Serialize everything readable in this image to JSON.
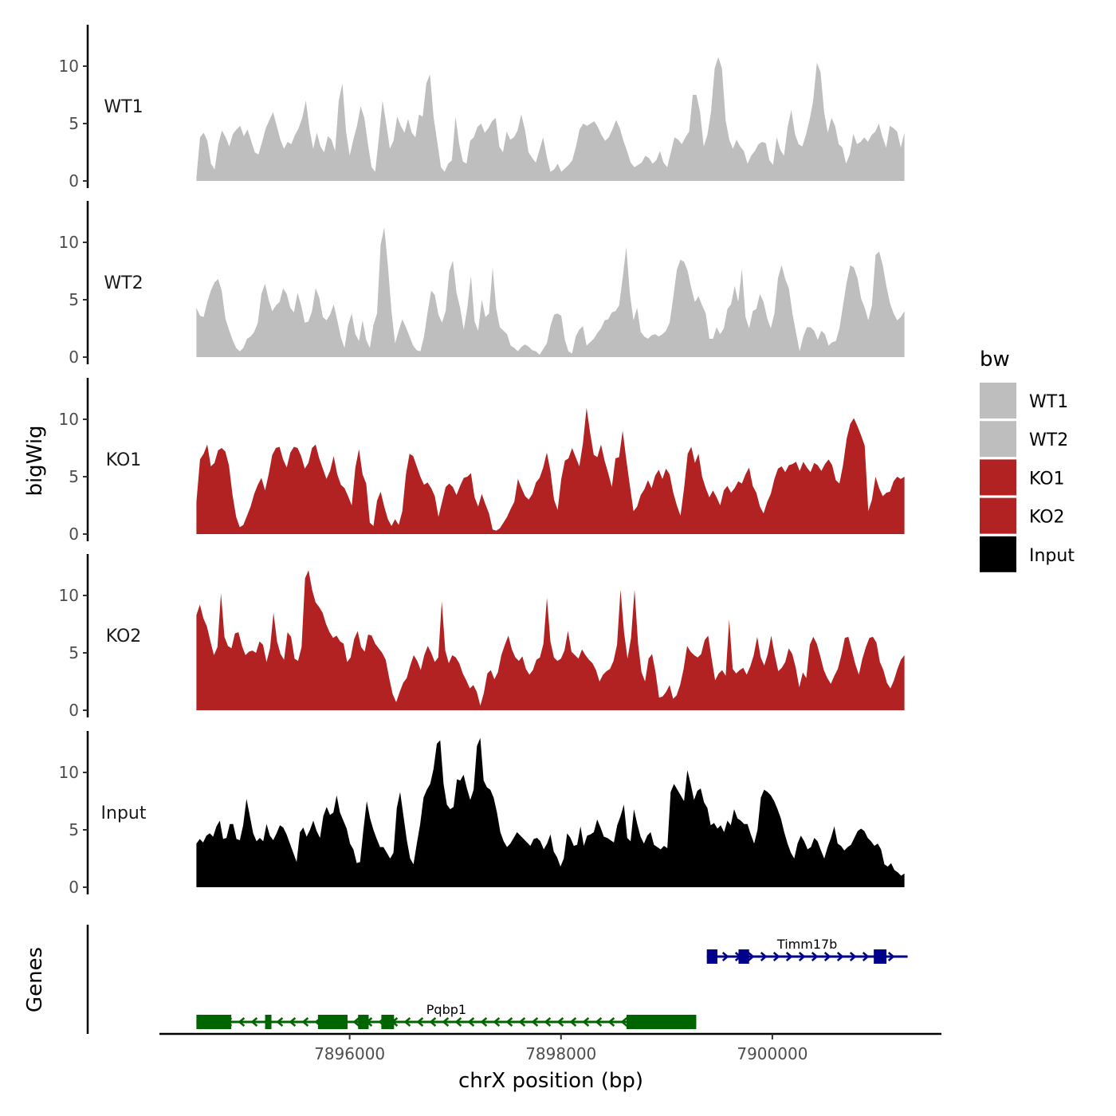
{
  "chart_data": {
    "type": "area",
    "xlabel": "chrX position (bp)",
    "ylabel": "bigWig",
    "genes_label": "Genes",
    "xlim": [
      7894200,
      7901600
    ],
    "region": [
      7894550,
      7901250
    ],
    "x_ticks": [
      {
        "value": 7896000,
        "label": "7896000"
      },
      {
        "value": 7898000,
        "label": "7898000"
      },
      {
        "value": 7900000,
        "label": "7900000"
      }
    ],
    "ylim": [
      0,
      13
    ],
    "y_ticks": [
      {
        "value": 0,
        "label": "0"
      },
      {
        "value": 5,
        "label": "5"
      },
      {
        "value": 10,
        "label": "10"
      }
    ],
    "series": [
      {
        "name": "WT1",
        "color": "#bebebe",
        "values": [
          0.3,
          3.8,
          4.2,
          3.5,
          1.5,
          1.0,
          3.2,
          4.4,
          3.8,
          3.0,
          4.1,
          4.5,
          4.8,
          3.9,
          4.5,
          3.5,
          2.5,
          2.3,
          3.4,
          4.6,
          5.3,
          6.0,
          4.8,
          3.6,
          2.8,
          3.4,
          3.2,
          4.0,
          4.6,
          5.5,
          7.0,
          4.5,
          2.8,
          4.2,
          3.0,
          2.5,
          3.9,
          3.6,
          2.6,
          7.0,
          8.5,
          4.3,
          2.2,
          3.6,
          4.8,
          6.5,
          5.5,
          3.2,
          1.2,
          0.8,
          3.8,
          7.0,
          5.0,
          2.8,
          3.5,
          5.6,
          4.8,
          4.2,
          5.4,
          4.2,
          3.8,
          5.8,
          5.6,
          8.5,
          9.3,
          5.5,
          3.4,
          1.2,
          0.8,
          1.5,
          1.8,
          5.6,
          3.2,
          1.7,
          1.5,
          3.5,
          3.8,
          4.7,
          5.0,
          4.2,
          4.6,
          5.2,
          5.5,
          3.0,
          2.5,
          4.3,
          3.6,
          3.8,
          4.4,
          5.8,
          4.5,
          2.5,
          2.0,
          1.6,
          2.7,
          3.8,
          2.1,
          0.8,
          1.0,
          1.5,
          0.8,
          1.1,
          1.4,
          1.8,
          3.0,
          4.5,
          5.0,
          4.8,
          5.0,
          5.2,
          4.7,
          4.0,
          3.5,
          3.8,
          4.5,
          5.3,
          4.6,
          3.5,
          2.6,
          1.6,
          1.2,
          1.4,
          1.6,
          2.2,
          2.0,
          1.5,
          1.8,
          2.6,
          1.6,
          1.2,
          2.5,
          3.8,
          3.6,
          3.2,
          3.8,
          4.3,
          7.5,
          7.5,
          6.0,
          3.0,
          4.0,
          6.0,
          9.8,
          10.8,
          9.8,
          5.3,
          3.6,
          2.8,
          3.6,
          3.0,
          2.6,
          1.5,
          2.2,
          2.6,
          3.2,
          3.4,
          3.3,
          1.8,
          1.4,
          3.8,
          2.7,
          2.2,
          4.7,
          6.2,
          4.1,
          3.2,
          3.0,
          4.0,
          5.3,
          7.0,
          10.3,
          9.5,
          6.0,
          4.2,
          5.5,
          4.8,
          3.2,
          2.9,
          1.5,
          2.3,
          4.1,
          3.2,
          3.4,
          3.8,
          3.4,
          4.0,
          4.3,
          5.0,
          3.8,
          2.9,
          4.8,
          4.6,
          4.3,
          2.9,
          4.2
        ]
      },
      {
        "name": "WT2",
        "color": "#bebebe",
        "values": [
          4.3,
          3.6,
          3.5,
          4.8,
          5.8,
          6.5,
          6.8,
          5.8,
          3.4,
          2.4,
          1.5,
          0.8,
          0.5,
          0.8,
          1.6,
          1.8,
          2.2,
          3.0,
          5.5,
          6.4,
          5.0,
          4.0,
          4.5,
          4.8,
          6.0,
          5.5,
          4.3,
          3.9,
          5.6,
          4.5,
          3.0,
          3.1,
          4.0,
          6.0,
          5.2,
          3.5,
          3.2,
          3.7,
          4.6,
          3.2,
          1.7,
          0.8,
          2.8,
          3.8,
          2.0,
          1.4,
          3.2,
          1.5,
          0.8,
          2.8,
          3.8,
          9.8,
          11.3,
          8.0,
          4.0,
          1.2,
          2.3,
          3.3,
          2.6,
          1.8,
          1.0,
          0.6,
          0.5,
          1.8,
          3.9,
          5.8,
          5.4,
          3.7,
          3.0,
          4.0,
          7.5,
          8.4,
          5.6,
          4.3,
          2.4,
          4.3,
          7.1,
          3.1,
          2.3,
          5.0,
          3.5,
          3.8,
          7.8,
          4.2,
          2.6,
          2.3,
          2.0,
          1.0,
          0.8,
          0.5,
          0.9,
          1.1,
          0.9,
          0.6,
          0.5,
          0.2,
          0.7,
          1.2,
          2.7,
          3.7,
          3.8,
          3.6,
          1.5,
          0.5,
          0.3,
          1.8,
          2.4,
          2.7,
          1.0,
          1.3,
          1.6,
          2.1,
          2.5,
          3.2,
          3.3,
          3.9,
          4.0,
          4.5,
          6.9,
          9.6,
          5.5,
          3.2,
          4.3,
          2.2,
          1.8,
          1.6,
          1.9,
          2.0,
          1.8,
          2.0,
          2.3,
          3.0,
          5.2,
          7.6,
          8.5,
          8.3,
          7.5,
          6.0,
          4.8,
          5.3,
          4.5,
          3.8,
          1.6,
          1.6,
          2.6,
          2.0,
          2.5,
          4.2,
          4.6,
          6.2,
          4.8,
          7.7,
          3.5,
          2.5,
          4.0,
          4.2,
          5.5,
          4.8,
          3.4,
          2.5,
          3.8,
          6.9,
          8.0,
          6.8,
          6.0,
          3.8,
          2.1,
          0.5,
          1.8,
          2.6,
          2.6,
          2.3,
          1.5,
          2.3,
          2.0,
          1.0,
          1.3,
          1.4,
          2.5,
          4.5,
          6.5,
          8.0,
          7.8,
          6.9,
          5.1,
          4.3,
          3.2,
          4.5,
          8.9,
          9.2,
          8.0,
          6.2,
          4.7,
          3.8,
          3.2,
          3.5,
          4.0
        ]
      },
      {
        "name": "KO1",
        "color": "#b22222",
        "values": [
          2.8,
          6.5,
          7.0,
          7.8,
          5.9,
          6.2,
          7.3,
          7.5,
          7.2,
          6.0,
          3.4,
          1.5,
          0.6,
          0.8,
          1.6,
          2.4,
          3.5,
          4.3,
          4.9,
          3.8,
          5.2,
          6.9,
          7.5,
          7.6,
          6.5,
          5.8,
          7.1,
          7.6,
          7.5,
          6.8,
          5.7,
          6.2,
          7.5,
          7.8,
          6.6,
          5.7,
          4.8,
          5.5,
          6.8,
          5.2,
          4.3,
          4.0,
          3.3,
          2.5,
          5.8,
          7.4,
          5.2,
          4.4,
          1.0,
          0.7,
          2.9,
          3.7,
          2.4,
          1.3,
          0.7,
          1.3,
          0.8,
          2.0,
          5.2,
          7.0,
          6.8,
          5.9,
          5.0,
          4.3,
          4.5,
          4.0,
          3.3,
          1.5,
          2.8,
          4.1,
          4.4,
          4.1,
          3.4,
          4.2,
          4.9,
          5.0,
          5.3,
          3.2,
          2.4,
          3.5,
          2.6,
          1.8,
          0.4,
          0.3,
          0.5,
          1.0,
          1.5,
          2.2,
          2.8,
          4.8,
          4.0,
          3.3,
          3.0,
          3.5,
          4.5,
          4.9,
          5.8,
          7.1,
          5.5,
          3.0,
          2.1,
          4.8,
          6.4,
          6.6,
          7.5,
          6.7,
          5.9,
          7.9,
          11.0,
          8.8,
          6.9,
          6.7,
          7.8,
          6.4,
          5.3,
          4.1,
          6.6,
          6.7,
          9.0,
          6.5,
          4.2,
          2.0,
          2.4,
          3.4,
          3.9,
          4.7,
          4.0,
          5.1,
          5.6,
          4.8,
          5.7,
          5.2,
          3.6,
          2.5,
          1.6,
          4.0,
          7.0,
          7.6,
          6.2,
          7.0,
          5.0,
          4.0,
          3.2,
          3.8,
          3.2,
          2.5,
          3.8,
          4.2,
          3.6,
          4.0,
          4.6,
          4.4,
          5.2,
          5.8,
          4.2,
          3.6,
          2.4,
          1.8,
          2.8,
          3.5,
          4.8,
          5.7,
          5.9,
          5.4,
          6.0,
          6.1,
          6.3,
          5.5,
          6.3,
          5.8,
          5.4,
          6.2,
          6.0,
          5.5,
          6.1,
          6.5,
          6.0,
          4.7,
          4.4,
          6.0,
          8.3,
          9.6,
          10.1,
          9.4,
          8.6,
          7.7,
          2.0,
          3.0,
          5.0,
          4.0,
          3.3,
          3.6,
          3.7,
          4.6,
          5.0,
          4.8,
          5.0
        ]
      },
      {
        "name": "KO2",
        "color": "#b22222",
        "values": [
          8.3,
          9.2,
          8.0,
          7.3,
          6.0,
          4.8,
          5.5,
          10.2,
          6.4,
          5.6,
          5.4,
          6.7,
          6.8,
          5.6,
          4.8,
          5.1,
          5.2,
          5.0,
          6.0,
          5.7,
          4.2,
          5.4,
          8.5,
          6.0,
          4.9,
          4.4,
          6.8,
          6.4,
          4.5,
          4.3,
          5.5,
          11.5,
          12.2,
          10.5,
          9.4,
          9.0,
          8.5,
          7.5,
          6.8,
          6.3,
          6.5,
          6.0,
          5.8,
          4.2,
          4.6,
          6.2,
          6.9,
          5.5,
          5.1,
          6.6,
          6.5,
          5.8,
          5.4,
          5.0,
          4.4,
          2.8,
          1.4,
          0.7,
          1.6,
          2.4,
          2.8,
          3.9,
          4.8,
          4.3,
          3.5,
          4.8,
          5.6,
          5.0,
          4.2,
          4.6,
          9.5,
          5.2,
          4.1,
          4.8,
          4.6,
          4.1,
          3.2,
          2.6,
          1.9,
          2.2,
          1.6,
          0.4,
          1.5,
          3.2,
          3.5,
          2.7,
          3.3,
          4.8,
          5.7,
          6.5,
          5.3,
          4.6,
          4.3,
          4.7,
          3.6,
          3.1,
          3.5,
          4.4,
          4.6,
          5.8,
          9.8,
          6.0,
          4.6,
          4.3,
          4.5,
          5.2,
          6.9,
          5.1,
          4.8,
          4.5,
          5.3,
          4.8,
          4.4,
          4.1,
          3.5,
          2.5,
          3.1,
          3.4,
          3.6,
          4.3,
          5.7,
          10.5,
          6.8,
          4.5,
          6.3,
          10.5,
          5.8,
          3.3,
          2.5,
          4.5,
          4.9,
          3.3,
          1.1,
          1.2,
          1.6,
          2.2,
          1.0,
          1.3,
          2.2,
          3.6,
          5.6,
          5.1,
          4.8,
          4.6,
          4.9,
          6.1,
          6.5,
          4.5,
          2.6,
          3.2,
          3.5,
          3.0,
          7.9,
          3.6,
          3.2,
          3.5,
          3.7,
          3.1,
          3.8,
          4.8,
          6.4,
          4.6,
          3.9,
          4.9,
          6.5,
          4.8,
          3.4,
          3.7,
          4.2,
          5.4,
          4.9,
          3.7,
          2.0,
          3.3,
          2.8,
          5.7,
          6.4,
          5.8,
          4.7,
          3.5,
          2.8,
          2.3,
          3.0,
          3.6,
          4.8,
          6.3,
          6.4,
          5.2,
          4.0,
          3.1,
          4.5,
          5.5,
          6.3,
          6.4,
          5.9,
          4.2,
          3.5,
          2.4,
          1.9,
          2.6,
          3.6,
          4.4,
          4.8
        ]
      },
      {
        "name": "Input",
        "color": "#000000",
        "values": [
          3.8,
          4.2,
          3.9,
          4.5,
          4.7,
          4.4,
          5.3,
          5.8,
          4.2,
          4.3,
          5.5,
          5.5,
          4.2,
          4.1,
          5.4,
          7.7,
          6.2,
          4.7,
          4.0,
          4.3,
          4.0,
          5.5,
          4.5,
          4.1,
          4.7,
          5.4,
          5.2,
          4.6,
          3.8,
          3.0,
          2.2,
          4.8,
          5.2,
          4.4,
          5.0,
          5.8,
          4.9,
          4.3,
          6.2,
          7.0,
          6.3,
          6.5,
          8.0,
          6.5,
          5.8,
          5.1,
          3.8,
          3.3,
          2.1,
          2.2,
          5.0,
          7.5,
          6.0,
          5.0,
          4.2,
          3.5,
          3.5,
          3.0,
          2.5,
          3.0,
          6.9,
          8.3,
          6.2,
          4.1,
          2.5,
          2.0,
          3.8,
          5.5,
          7.8,
          8.5,
          9.0,
          10.3,
          12.5,
          12.8,
          9.0,
          7.2,
          6.8,
          7.0,
          9.4,
          9.3,
          9.8,
          8.6,
          7.6,
          8.5,
          12.3,
          13.0,
          9.3,
          8.7,
          8.5,
          7.8,
          6.5,
          4.8,
          4.0,
          3.5,
          3.8,
          4.3,
          4.8,
          4.5,
          4.2,
          3.9,
          3.6,
          4.2,
          4.3,
          4.0,
          3.3,
          3.8,
          4.6,
          3.1,
          2.6,
          1.8,
          2.5,
          4.7,
          4.3,
          3.6,
          3.7,
          5.3,
          3.6,
          4.5,
          4.6,
          4.8,
          5.9,
          5.2,
          4.4,
          4.3,
          4.1,
          3.9,
          5.4,
          6.2,
          7.2,
          4.3,
          4.0,
          6.8,
          5.5,
          4.4,
          3.8,
          4.5,
          4.8,
          3.7,
          3.5,
          3.3,
          3.6,
          3.4,
          8.3,
          9.0,
          8.5,
          8.0,
          7.5,
          10.2,
          9.0,
          7.6,
          8.4,
          8.6,
          7.4,
          6.9,
          5.4,
          5.6,
          5.1,
          5.4,
          4.8,
          5.8,
          5.4,
          6.8,
          6.0,
          5.8,
          5.5,
          5.5,
          4.6,
          3.8,
          5.0,
          7.8,
          8.5,
          8.3,
          8.0,
          7.5,
          6.8,
          6.0,
          4.8,
          3.8,
          3.0,
          2.5,
          3.8,
          4.5,
          4.0,
          3.3,
          3.5,
          4.3,
          4.0,
          3.2,
          2.5,
          3.5,
          4.3,
          5.3,
          3.8,
          3.6,
          3.2,
          3.5,
          3.7,
          4.3,
          4.9,
          5.1,
          4.9,
          4.3,
          4.0,
          3.6,
          3.8,
          3.3,
          2.0,
          1.8,
          2.1,
          1.5,
          1.3,
          1.0,
          1.2
        ]
      }
    ],
    "legend": {
      "title": "bw",
      "position": "right",
      "items": [
        {
          "label": "WT1",
          "color": "#bebebe"
        },
        {
          "label": "WT2",
          "color": "#bebebe"
        },
        {
          "label": "KO1",
          "color": "#b22222"
        },
        {
          "label": "KO2",
          "color": "#b22222"
        },
        {
          "label": "Input",
          "color": "#000000"
        }
      ]
    },
    "genes": [
      {
        "name": "Timm17b",
        "color": "#00008b",
        "strand": "+",
        "start": 7899380,
        "end": 7901280,
        "exons": [
          [
            7899380,
            7899480
          ],
          [
            7899680,
            7899780
          ],
          [
            7900960,
            7901080
          ]
        ]
      },
      {
        "name": "Pqbp1",
        "color": "#006400",
        "strand": "-",
        "start": 7894550,
        "end": 7899280,
        "exons": [
          [
            7894550,
            7894880
          ],
          [
            7895200,
            7895260
          ],
          [
            7895700,
            7895980
          ],
          [
            7896080,
            7896180
          ],
          [
            7896300,
            7896420
          ],
          [
            7898620,
            7899280
          ]
        ]
      }
    ]
  }
}
